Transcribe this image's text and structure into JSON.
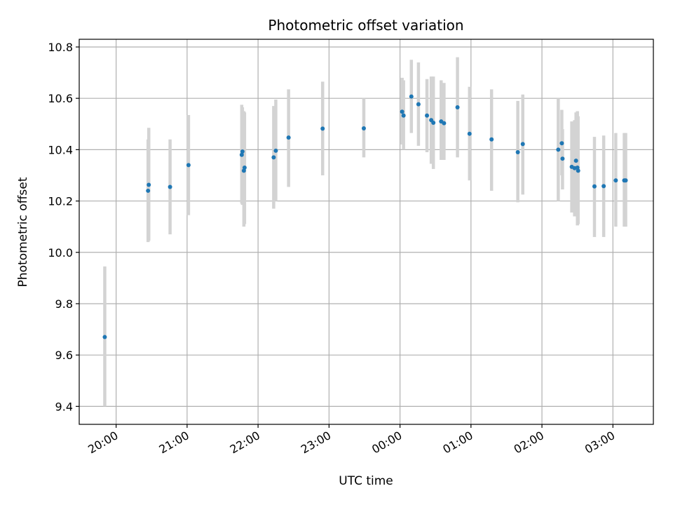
{
  "chart_data": {
    "type": "scatter",
    "title": "Photometric offset variation",
    "xlabel": "UTC time",
    "ylabel": "Photometric offset",
    "x_unit": "hours past midnight UTC",
    "xlim": [
      -4.52,
      3.57
    ],
    "ylim": [
      9.33,
      10.83
    ],
    "x_ticks": [
      {
        "value": -4,
        "label": "20:00"
      },
      {
        "value": -3,
        "label": "21:00"
      },
      {
        "value": -2,
        "label": "22:00"
      },
      {
        "value": -1,
        "label": "23:00"
      },
      {
        "value": 0,
        "label": "00:00"
      },
      {
        "value": 1,
        "label": "01:00"
      },
      {
        "value": 2,
        "label": "02:00"
      },
      {
        "value": 3,
        "label": "03:00"
      }
    ],
    "y_ticks": [
      {
        "value": 9.4,
        "label": "9.4"
      },
      {
        "value": 9.6,
        "label": "9.6"
      },
      {
        "value": 9.8,
        "label": "9.8"
      },
      {
        "value": 10.0,
        "label": "10.0"
      },
      {
        "value": 10.2,
        "label": "10.2"
      },
      {
        "value": 10.4,
        "label": "10.4"
      },
      {
        "value": 10.6,
        "label": "10.6"
      },
      {
        "value": 10.8,
        "label": "10.8"
      }
    ],
    "grid": true,
    "point_color": "#1f77b4",
    "errorbar_color": "#d3d3d3",
    "points": [
      {
        "x": -4.16,
        "y": 9.67,
        "ylo": 9.4,
        "yhi": 9.945
      },
      {
        "x": -3.55,
        "y": 10.24,
        "ylo": 10.04,
        "yhi": 10.44
      },
      {
        "x": -3.54,
        "y": 10.263,
        "ylo": 10.045,
        "yhi": 10.485
      },
      {
        "x": -3.24,
        "y": 10.255,
        "ylo": 10.07,
        "yhi": 10.44
      },
      {
        "x": -2.98,
        "y": 10.34,
        "ylo": 10.145,
        "yhi": 10.535
      },
      {
        "x": -2.23,
        "y": 10.38,
        "ylo": 10.19,
        "yhi": 10.575
      },
      {
        "x": -2.22,
        "y": 10.393,
        "ylo": 10.185,
        "yhi": 10.565
      },
      {
        "x": -2.2,
        "y": 10.318,
        "ylo": 10.1,
        "yhi": 10.55
      },
      {
        "x": -2.19,
        "y": 10.33,
        "ylo": 10.11,
        "yhi": 10.545
      },
      {
        "x": -1.78,
        "y": 10.37,
        "ylo": 10.17,
        "yhi": 10.57
      },
      {
        "x": -1.75,
        "y": 10.396,
        "ylo": 10.2,
        "yhi": 10.595
      },
      {
        "x": -1.57,
        "y": 10.447,
        "ylo": 10.255,
        "yhi": 10.635
      },
      {
        "x": -1.09,
        "y": 10.482,
        "ylo": 10.3,
        "yhi": 10.665
      },
      {
        "x": -0.51,
        "y": 10.483,
        "ylo": 10.37,
        "yhi": 10.6
      },
      {
        "x": 0.03,
        "y": 10.548,
        "ylo": 10.42,
        "yhi": 10.68
      },
      {
        "x": 0.05,
        "y": 10.533,
        "ylo": 10.4,
        "yhi": 10.67
      },
      {
        "x": 0.16,
        "y": 10.607,
        "ylo": 10.465,
        "yhi": 10.75
      },
      {
        "x": 0.26,
        "y": 10.577,
        "ylo": 10.415,
        "yhi": 10.74
      },
      {
        "x": 0.38,
        "y": 10.533,
        "ylo": 10.39,
        "yhi": 10.675
      },
      {
        "x": 0.44,
        "y": 10.515,
        "ylo": 10.345,
        "yhi": 10.685
      },
      {
        "x": 0.47,
        "y": 10.505,
        "ylo": 10.325,
        "yhi": 10.685
      },
      {
        "x": 0.58,
        "y": 10.51,
        "ylo": 10.36,
        "yhi": 10.67
      },
      {
        "x": 0.62,
        "y": 10.503,
        "ylo": 10.36,
        "yhi": 10.66
      },
      {
        "x": 0.81,
        "y": 10.565,
        "ylo": 10.37,
        "yhi": 10.76
      },
      {
        "x": 0.98,
        "y": 10.462,
        "ylo": 10.28,
        "yhi": 10.645
      },
      {
        "x": 1.29,
        "y": 10.44,
        "ylo": 10.24,
        "yhi": 10.635
      },
      {
        "x": 1.66,
        "y": 10.39,
        "ylo": 10.195,
        "yhi": 10.59
      },
      {
        "x": 1.73,
        "y": 10.422,
        "ylo": 10.225,
        "yhi": 10.615
      },
      {
        "x": 2.23,
        "y": 10.4,
        "ylo": 10.2,
        "yhi": 10.6
      },
      {
        "x": 2.28,
        "y": 10.425,
        "ylo": 10.3,
        "yhi": 10.555
      },
      {
        "x": 2.29,
        "y": 10.365,
        "ylo": 10.245,
        "yhi": 10.48
      },
      {
        "x": 2.42,
        "y": 10.333,
        "ylo": 10.155,
        "yhi": 10.51
      },
      {
        "x": 2.46,
        "y": 10.328,
        "ylo": 10.14,
        "yhi": 10.515
      },
      {
        "x": 2.48,
        "y": 10.357,
        "ylo": 10.165,
        "yhi": 10.545
      },
      {
        "x": 2.5,
        "y": 10.33,
        "ylo": 10.105,
        "yhi": 10.55
      },
      {
        "x": 2.51,
        "y": 10.318,
        "ylo": 10.11,
        "yhi": 10.53
      },
      {
        "x": 2.74,
        "y": 10.257,
        "ylo": 10.06,
        "yhi": 10.45
      },
      {
        "x": 2.87,
        "y": 10.258,
        "ylo": 10.06,
        "yhi": 10.455
      },
      {
        "x": 3.04,
        "y": 10.28,
        "ylo": 10.1,
        "yhi": 10.465
      },
      {
        "x": 3.16,
        "y": 10.28,
        "ylo": 10.1,
        "yhi": 10.465
      },
      {
        "x": 3.18,
        "y": 10.28,
        "ylo": 10.1,
        "yhi": 10.465
      }
    ]
  }
}
